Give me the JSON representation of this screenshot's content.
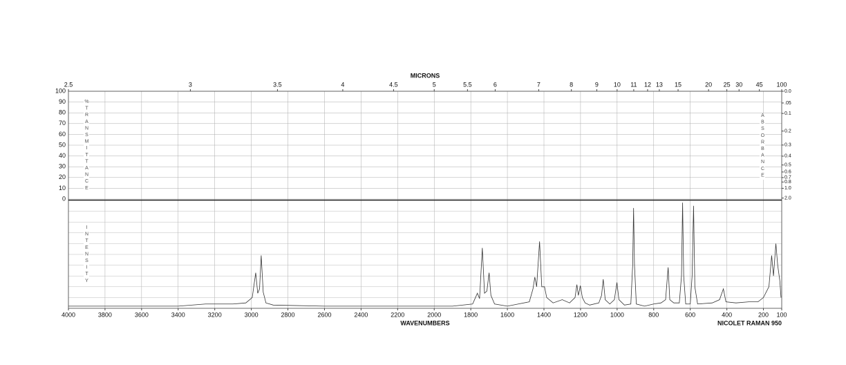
{
  "chart_data": {
    "type": "line",
    "x": [
      4000,
      3400,
      3250,
      3100,
      3030,
      2995,
      2976,
      2965,
      2955,
      2946,
      2935,
      2920,
      2880,
      2600,
      2200,
      1900,
      1790,
      1764,
      1752,
      1737,
      1725,
      1712,
      1700,
      1690,
      1670,
      1600,
      1540,
      1480,
      1460,
      1450,
      1440,
      1424,
      1412,
      1397,
      1385,
      1350,
      1300,
      1260,
      1230,
      1220,
      1212,
      1201,
      1190,
      1175,
      1150,
      1100,
      1085,
      1076,
      1065,
      1040,
      1015,
      1001,
      990,
      960,
      925,
      915,
      910,
      905,
      895,
      850,
      800,
      760,
      735,
      721,
      712,
      690,
      660,
      648,
      642,
      636,
      625,
      600,
      590,
      582,
      575,
      560,
      480,
      440,
      419,
      405,
      350,
      280,
      230,
      200,
      185,
      170,
      155,
      145,
      132,
      122,
      110,
      104
    ],
    "values": [
      2,
      2,
      4,
      4,
      5,
      10,
      33,
      14,
      18,
      49,
      15,
      5,
      3,
      2,
      2,
      2,
      4,
      14,
      9,
      56,
      14,
      16,
      33,
      12,
      4,
      2,
      4,
      6,
      18,
      29,
      20,
      62,
      20,
      20,
      10,
      5,
      8,
      5,
      10,
      22,
      12,
      21,
      10,
      5,
      3,
      5,
      12,
      27,
      8,
      4,
      8,
      24,
      8,
      3,
      4,
      40,
      93,
      40,
      4,
      2,
      4,
      5,
      8,
      38,
      8,
      5,
      5,
      30,
      98,
      30,
      4,
      4,
      30,
      95,
      20,
      4,
      5,
      8,
      18,
      6,
      5,
      6,
      6,
      10,
      15,
      20,
      49,
      30,
      60,
      40,
      25,
      10
    ],
    "color": "#333333",
    "xlim": [
      4000,
      100
    ],
    "xticks": [
      4000,
      3800,
      3600,
      3400,
      3200,
      3000,
      2800,
      2600,
      2400,
      2200,
      2000,
      1800,
      1600,
      1400,
      1200,
      1000,
      800,
      600,
      400,
      200,
      100
    ],
    "xlabel": "WAVENUMBERS",
    "instrument": "NICOLET RAMAN 950",
    "ylim": [
      0,
      100
    ],
    "ylabel": "INTENSITY",
    "grid": true,
    "transmittance": {
      "label": "%TRANSMITTANCE",
      "ylim": [
        0,
        100
      ],
      "yticks": [
        0,
        10,
        20,
        30,
        40,
        50,
        60,
        70,
        80,
        90,
        100
      ]
    },
    "absorbance": {
      "label": "ABSORBANCE",
      "ticks": [
        {
          "value": 0,
          "label": "0.0"
        },
        {
          "value": 0.05,
          "label": ".05"
        },
        {
          "value": 0.1,
          "label": "0.1"
        },
        {
          "value": 0.2,
          "label": "0.2"
        },
        {
          "value": 0.3,
          "label": "0.3"
        },
        {
          "value": 0.4,
          "label": "0.4"
        },
        {
          "value": 0.5,
          "label": "0.5"
        },
        {
          "value": 0.6,
          "label": "0.6"
        },
        {
          "value": 0.7,
          "label": "0.7"
        },
        {
          "value": 0.8,
          "label": "0.8"
        },
        {
          "value": 1,
          "label": "1.0"
        },
        {
          "value": 2,
          "label": "2.0"
        }
      ]
    },
    "microns": {
      "label": "MICRONS",
      "ticks": [
        2.5,
        3,
        3.5,
        4,
        4.5,
        5,
        5.5,
        6,
        7,
        8,
        9,
        10,
        11,
        12,
        13,
        15,
        20,
        25,
        30,
        45,
        100
      ]
    }
  }
}
